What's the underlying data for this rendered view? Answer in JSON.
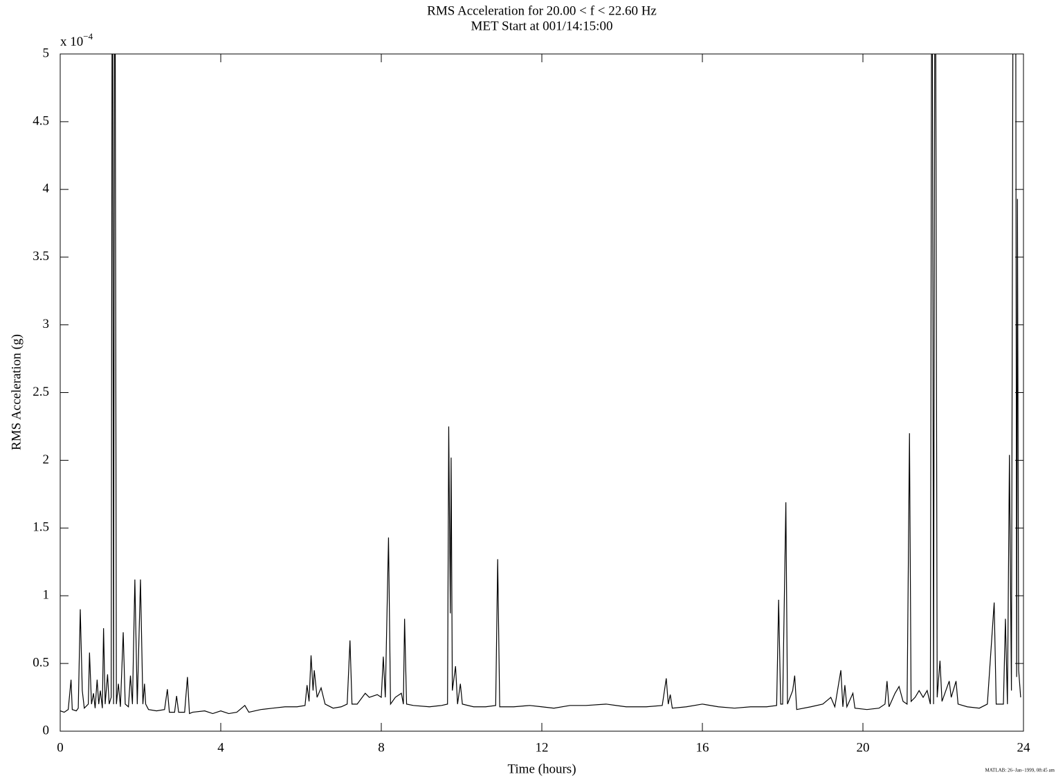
{
  "chart_data": {
    "type": "line",
    "title": "RMS Acceleration for 20.00 < f < 22.60 Hz",
    "subtitle": "MET Start at 001/14:15:00",
    "x_label": "Time (hours)",
    "y_label": "RMS Acceleration (g)",
    "y_multiplier": {
      "base": "x 10",
      "exponent": "−4"
    },
    "footer": "MATLAB: 26−Jan−1999, 08:45 am",
    "xlim": [
      0,
      24
    ],
    "xticks": [
      0,
      4,
      8,
      12,
      16,
      20,
      24
    ],
    "ylim": [
      0,
      5
    ],
    "yticks": [
      0,
      0.5,
      1,
      1.5,
      2,
      2.5,
      3,
      3.5,
      4,
      4.5,
      5
    ],
    "grid": false,
    "series": [
      {
        "color": "#000000",
        "x": [
          0,
          0.1,
          0.2,
          0.27,
          0.3,
          0.4,
          0.45,
          0.5,
          0.55,
          0.6,
          0.7,
          0.73,
          0.78,
          0.83,
          0.87,
          0.92,
          0.96,
          1.0,
          1.05,
          1.08,
          1.12,
          1.18,
          1.22,
          1.27,
          1.3,
          1.33,
          1.36,
          1.4,
          1.45,
          1.5,
          1.57,
          1.62,
          1.7,
          1.75,
          1.8,
          1.86,
          1.92,
          2.0,
          2.06,
          2.1,
          2.13,
          2.2,
          2.4,
          2.6,
          2.67,
          2.72,
          2.85,
          2.9,
          2.95,
          3.1,
          3.17,
          3.22,
          3.3,
          3.6,
          3.8,
          4.0,
          4.2,
          4.4,
          4.6,
          4.7,
          5.0,
          5.3,
          5.6,
          5.9,
          6.1,
          6.15,
          6.2,
          6.25,
          6.3,
          6.33,
          6.4,
          6.5,
          6.6,
          6.8,
          7.0,
          7.15,
          7.22,
          7.27,
          7.4,
          7.6,
          7.7,
          7.9,
          8.0,
          8.05,
          8.1,
          8.18,
          8.23,
          8.35,
          8.5,
          8.55,
          8.58,
          8.63,
          8.8,
          9.2,
          9.5,
          9.65,
          9.68,
          9.72,
          9.74,
          9.77,
          9.85,
          9.9,
          9.97,
          10.02,
          10.3,
          10.6,
          10.85,
          10.9,
          10.95,
          11.3,
          11.7,
          12.0,
          12.3,
          12.7,
          13.1,
          13.6,
          14.1,
          14.6,
          15.0,
          15.1,
          15.15,
          15.2,
          15.25,
          15.6,
          16.0,
          16.4,
          16.8,
          17.2,
          17.6,
          17.85,
          17.9,
          17.95,
          18.0,
          18.08,
          18.12,
          18.25,
          18.3,
          18.35,
          18.7,
          19.0,
          19.2,
          19.3,
          19.45,
          19.5,
          19.55,
          19.6,
          19.75,
          19.8,
          20.1,
          20.4,
          20.55,
          20.6,
          20.65,
          20.8,
          20.9,
          21.0,
          21.1,
          21.16,
          21.2,
          21.3,
          21.4,
          21.5,
          21.6,
          21.68,
          21.72,
          21.76,
          21.8,
          21.85,
          21.92,
          21.97,
          22.15,
          22.2,
          22.32,
          22.37,
          22.6,
          22.9,
          23.1,
          23.27,
          23.32,
          23.5,
          23.55,
          23.6,
          23.65,
          23.7,
          23.75,
          23.8,
          23.83,
          23.85,
          23.88,
          23.93
        ],
        "values": [
          0.15,
          0.14,
          0.16,
          0.38,
          0.16,
          0.15,
          0.17,
          0.9,
          0.3,
          0.17,
          0.2,
          0.58,
          0.2,
          0.28,
          0.17,
          0.38,
          0.2,
          0.3,
          0.17,
          0.76,
          0.2,
          0.42,
          0.2,
          0.25,
          7,
          0.2,
          7,
          0.2,
          0.35,
          0.18,
          0.73,
          0.2,
          0.18,
          0.41,
          0.2,
          1.12,
          0.2,
          1.12,
          0.2,
          0.35,
          0.2,
          0.16,
          0.15,
          0.16,
          0.31,
          0.14,
          0.14,
          0.26,
          0.14,
          0.14,
          0.4,
          0.13,
          0.14,
          0.15,
          0.13,
          0.15,
          0.13,
          0.14,
          0.19,
          0.14,
          0.16,
          0.17,
          0.18,
          0.18,
          0.19,
          0.34,
          0.22,
          0.56,
          0.3,
          0.45,
          0.25,
          0.32,
          0.2,
          0.17,
          0.18,
          0.2,
          0.67,
          0.2,
          0.2,
          0.28,
          0.25,
          0.27,
          0.25,
          0.55,
          0.25,
          1.43,
          0.2,
          0.25,
          0.28,
          0.2,
          0.83,
          0.2,
          0.19,
          0.18,
          0.19,
          0.2,
          2.25,
          0.87,
          2.02,
          0.3,
          0.48,
          0.2,
          0.35,
          0.2,
          0.18,
          0.18,
          0.19,
          1.27,
          0.18,
          0.18,
          0.19,
          0.18,
          0.17,
          0.19,
          0.19,
          0.2,
          0.18,
          0.18,
          0.19,
          0.39,
          0.2,
          0.27,
          0.17,
          0.18,
          0.2,
          0.18,
          0.17,
          0.18,
          0.18,
          0.19,
          0.97,
          0.2,
          0.2,
          1.69,
          0.2,
          0.3,
          0.41,
          0.16,
          0.18,
          0.2,
          0.25,
          0.18,
          0.45,
          0.18,
          0.34,
          0.18,
          0.28,
          0.17,
          0.16,
          0.17,
          0.2,
          0.37,
          0.18,
          0.28,
          0.33,
          0.22,
          0.2,
          2.2,
          0.22,
          0.25,
          0.3,
          0.25,
          0.3,
          0.2,
          7,
          0.2,
          7,
          0.25,
          0.52,
          0.22,
          0.37,
          0.25,
          0.37,
          0.2,
          0.18,
          0.17,
          0.2,
          0.95,
          0.2,
          0.2,
          0.83,
          0.2,
          2.04,
          0.3,
          7,
          7,
          0.4,
          3.93,
          0.45,
          0.25
        ]
      }
    ]
  }
}
